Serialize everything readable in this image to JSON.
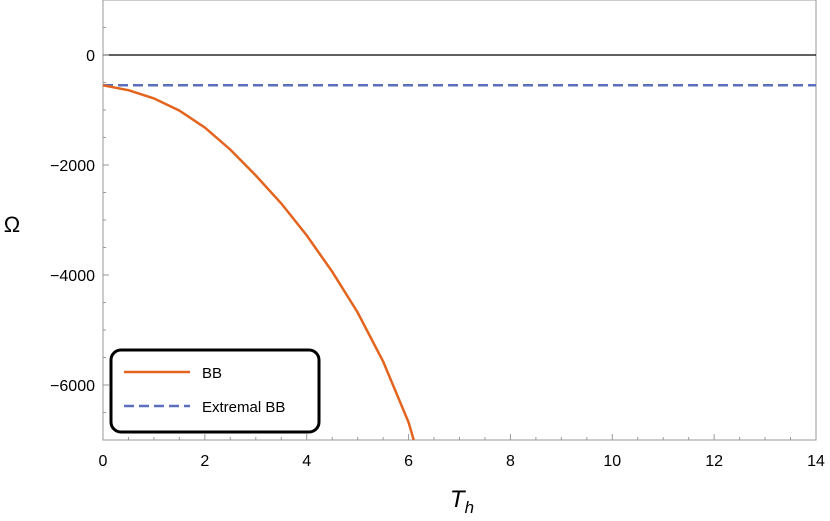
{
  "chart_data": {
    "type": "line",
    "title": "",
    "xlabel": "T",
    "xlabel_sub": "h",
    "ylabel": "Ω",
    "xlim": [
      0,
      14
    ],
    "ylim": [
      -7000,
      1000
    ],
    "x_ticks": [
      0,
      2,
      4,
      6,
      8,
      10,
      12,
      14
    ],
    "x_tick_labels": [
      "0",
      "2",
      "4",
      "6",
      "8",
      "10",
      "12",
      "14"
    ],
    "y_ticks": [
      0,
      -2000,
      -4000,
      -6000
    ],
    "y_tick_labels": [
      "0",
      "−2000",
      "−4000",
      "−6000"
    ],
    "grid": false,
    "legend_position": "bottom-left",
    "series": [
      {
        "name": "BB",
        "color": "#e3641e",
        "style": "solid",
        "x": [
          0,
          0.5,
          1,
          1.5,
          2,
          2.5,
          3,
          3.5,
          4,
          4.5,
          5,
          5.5,
          6,
          6.1
        ],
        "y": [
          -550,
          -640,
          -790,
          -1010,
          -1320,
          -1720,
          -2190,
          -2700,
          -3280,
          -3940,
          -4680,
          -5570,
          -6680,
          -7000
        ]
      },
      {
        "name": "Extremal BB",
        "color": "#5b6fbe",
        "style": "dashed",
        "x": [
          0,
          14
        ],
        "y": [
          -550,
          -550
        ]
      },
      {
        "color": "#000000",
        "style": "solid",
        "x": [
          0,
          14
        ],
        "y": [
          0,
          0
        ]
      }
    ]
  }
}
